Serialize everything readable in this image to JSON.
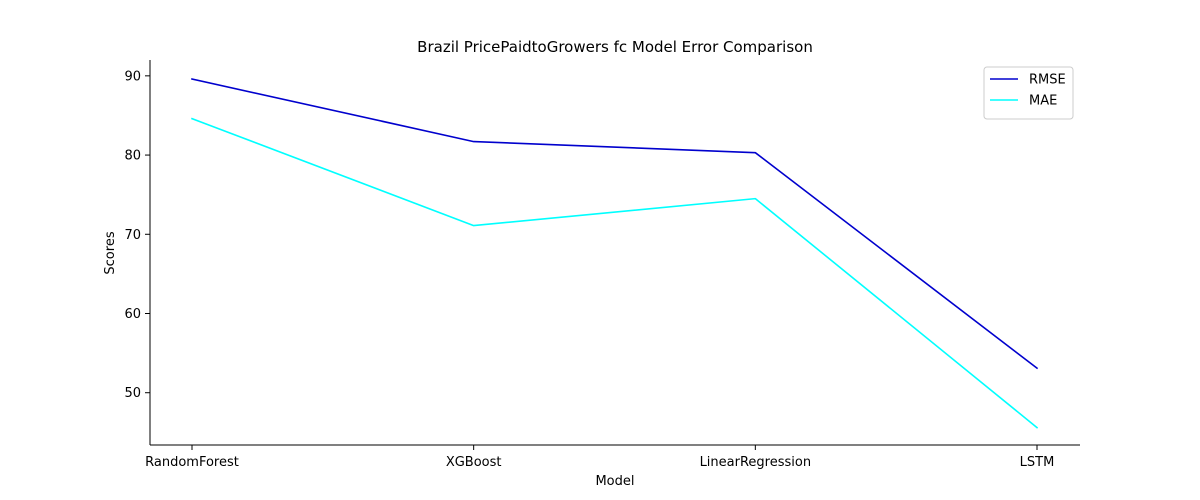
{
  "chart_data": {
    "type": "line",
    "title": "Brazil PricePaidtoGrowers fc Model Error Comparison",
    "xlabel": "Model",
    "ylabel": "Scores",
    "categories": [
      "RandomForest",
      "XGBoost",
      "LinearRegression",
      "LSTM"
    ],
    "series": [
      {
        "name": "RMSE",
        "values": [
          89.6,
          81.7,
          80.3,
          53.1
        ],
        "color": "#0000cd"
      },
      {
        "name": "MAE",
        "values": [
          84.6,
          71.1,
          74.5,
          45.6
        ],
        "color": "#00ffff"
      }
    ],
    "yticks": [
      50,
      60,
      70,
      80,
      90
    ],
    "ylim": [
      43.4,
      92.0
    ],
    "grid": false,
    "legend_position": "top-right"
  }
}
